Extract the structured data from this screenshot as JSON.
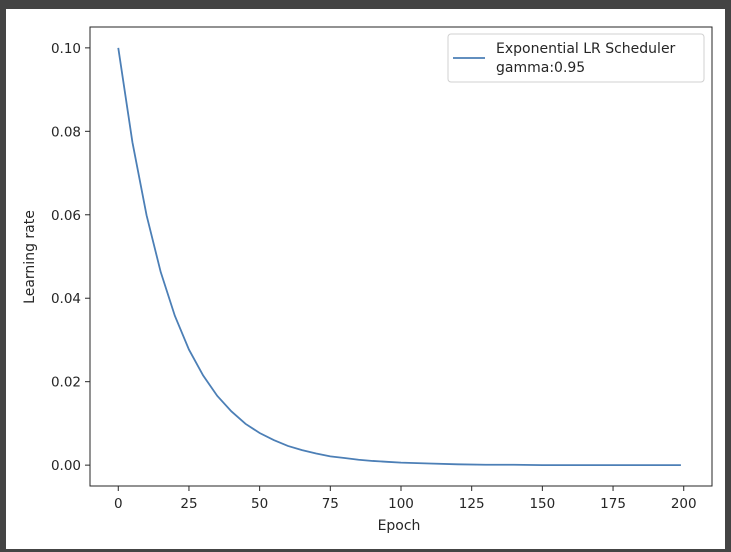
{
  "colors": {
    "background_frame": "#444444",
    "plot_background": "#ffffff",
    "axis": "#262626",
    "line": "#4c7fb6"
  },
  "chart_data": {
    "type": "line",
    "title": "",
    "xlabel": "Epoch",
    "ylabel": "Learning rate",
    "xlim": [
      -10,
      210
    ],
    "ylim": [
      -0.005,
      0.105
    ],
    "xticks": [
      0,
      25,
      50,
      75,
      100,
      125,
      150,
      175,
      200
    ],
    "xtick_labels": [
      "0",
      "25",
      "50",
      "75",
      "100",
      "125",
      "150",
      "175",
      "200"
    ],
    "yticks": [
      0.0,
      0.02,
      0.04,
      0.06,
      0.08,
      0.1
    ],
    "ytick_labels": [
      "0.00",
      "0.02",
      "0.04",
      "0.06",
      "0.08",
      "0.10"
    ],
    "grid": false,
    "legend_position": "top-right",
    "series": [
      {
        "name": "Exponential LR Scheduler\ngamma:0.95",
        "legend_lines": [
          "Exponential LR Scheduler",
          "gamma:0.95"
        ],
        "color": "#4c7fb6",
        "x": [
          0,
          5,
          10,
          15,
          20,
          25,
          30,
          35,
          40,
          45,
          50,
          55,
          60,
          65,
          70,
          75,
          80,
          85,
          90,
          95,
          100,
          110,
          120,
          130,
          140,
          150,
          160,
          170,
          180,
          190,
          199
        ],
        "y": [
          0.1,
          0.0774,
          0.0599,
          0.0463,
          0.0358,
          0.0277,
          0.0215,
          0.0166,
          0.0129,
          0.0099,
          0.0077,
          0.006,
          0.0046,
          0.0036,
          0.0028,
          0.0021,
          0.0017,
          0.0013,
          0.001,
          0.0008,
          0.0006,
          0.0004,
          0.0002,
          0.0001,
          0.0001,
          0.0,
          0.0,
          0.0,
          0.0,
          0.0,
          0.0
        ]
      }
    ]
  }
}
